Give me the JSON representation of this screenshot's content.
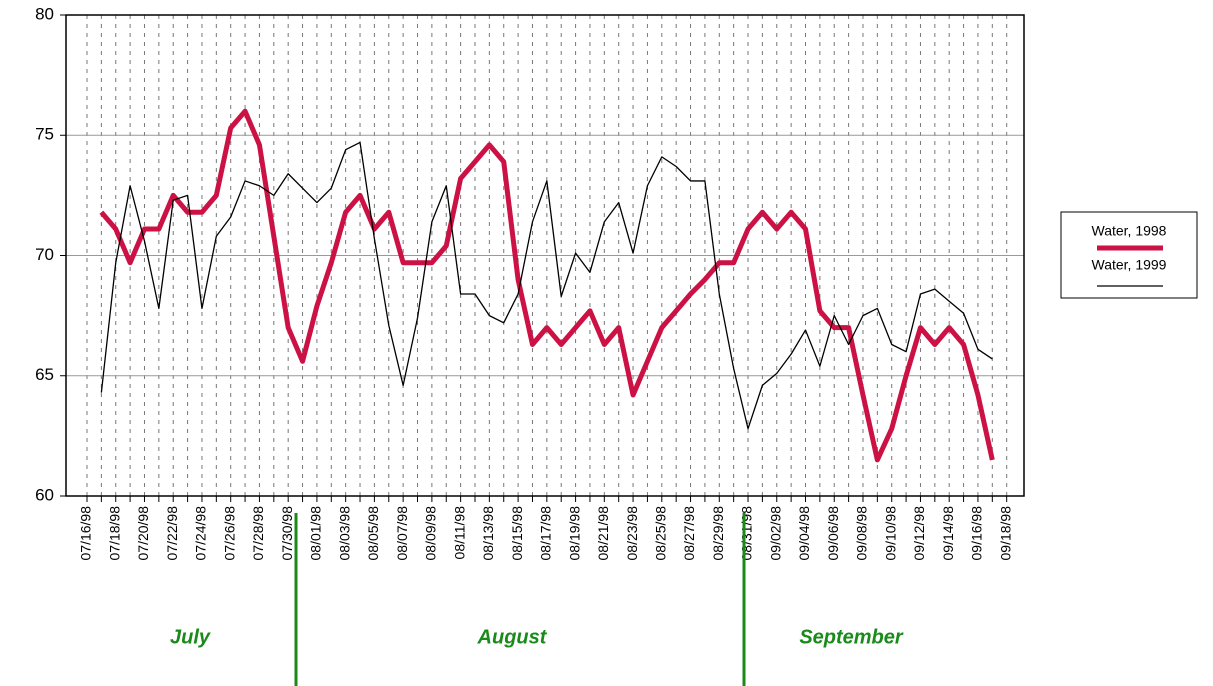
{
  "chart_data": {
    "type": "line",
    "categories": [
      "07/16/98",
      null,
      "07/18/98",
      null,
      "07/20/98",
      null,
      "07/22/98",
      null,
      "07/24/98",
      null,
      "07/26/98",
      null,
      "07/28/98",
      null,
      "07/30/98",
      null,
      "08/01/98",
      null,
      "08/03/98",
      null,
      "08/05/98",
      null,
      "08/07/98",
      null,
      "08/09/98",
      null,
      "08/11/98",
      null,
      "08/13/98",
      null,
      "08/15/98",
      null,
      "08/17/98",
      null,
      "08/19/98",
      null,
      "08/21/98",
      null,
      "08/23/98",
      null,
      "08/25/98",
      null,
      "08/27/98",
      null,
      "08/29/98",
      null,
      "08/31/98",
      null,
      "09/02/98",
      null,
      "09/04/98",
      null,
      "09/06/98",
      null,
      "09/08/98",
      null,
      "09/10/98",
      null,
      "09/12/98",
      null,
      "09/14/98",
      null,
      "09/16/98",
      null,
      "09/18/98"
    ],
    "series": [
      {
        "name": "Water, 1998",
        "color": "#cc1144",
        "width": 5,
        "values": [
          null,
          71.8,
          71.1,
          69.7,
          71.1,
          71.1,
          72.5,
          71.8,
          71.8,
          72.5,
          75.3,
          76,
          74.6,
          70.8,
          67,
          65.6,
          67.9,
          69.7,
          71.8,
          72.5,
          71.1,
          71.8,
          69.7,
          69.7,
          69.7,
          70.4,
          73.2,
          73.9,
          74.6,
          73.9,
          69,
          66.3,
          67,
          66.3,
          67,
          67.7,
          66.3,
          67,
          64.2,
          65.6,
          67,
          67.7,
          68.4,
          69,
          69.7,
          69.7,
          71.1,
          71.8,
          71.1,
          71.8,
          71.1,
          67.7,
          67,
          67,
          64.2,
          61.5,
          62.8,
          65,
          67,
          66.3,
          67,
          66.3,
          64.2,
          61.5,
          null
        ]
      },
      {
        "name": "Water, 1999",
        "color": "#000000",
        "width": 1.3,
        "values": [
          null,
          64.3,
          69.7,
          72.9,
          70.6,
          67.8,
          72.3,
          72.5,
          67.8,
          70.8,
          71.6,
          73.1,
          72.9,
          72.5,
          73.4,
          72.8,
          72.2,
          72.8,
          74.4,
          74.7,
          70.7,
          67.1,
          64.6,
          67.4,
          71.4,
          72.9,
          68.4,
          68.4,
          67.5,
          67.2,
          68.4,
          71.4,
          73.1,
          68.3,
          70.1,
          69.3,
          71.4,
          72.2,
          70.1,
          72.9,
          74.1,
          73.7,
          73.1,
          73.1,
          68.4,
          65.3,
          62.8,
          64.6,
          65.1,
          65.9,
          66.9,
          65.4,
          67.5,
          66.3,
          67.5,
          67.8,
          66.3,
          66,
          68.4,
          68.6,
          68.1,
          67.6,
          66.1,
          65.7,
          null
        ]
      }
    ],
    "ylim": [
      60,
      80
    ],
    "yticks": [
      60,
      65,
      70,
      75,
      80
    ],
    "grid": true,
    "annotations": [
      {
        "text": "July"
      },
      {
        "text": "August"
      },
      {
        "text": "September"
      }
    ],
    "legend": "right"
  }
}
